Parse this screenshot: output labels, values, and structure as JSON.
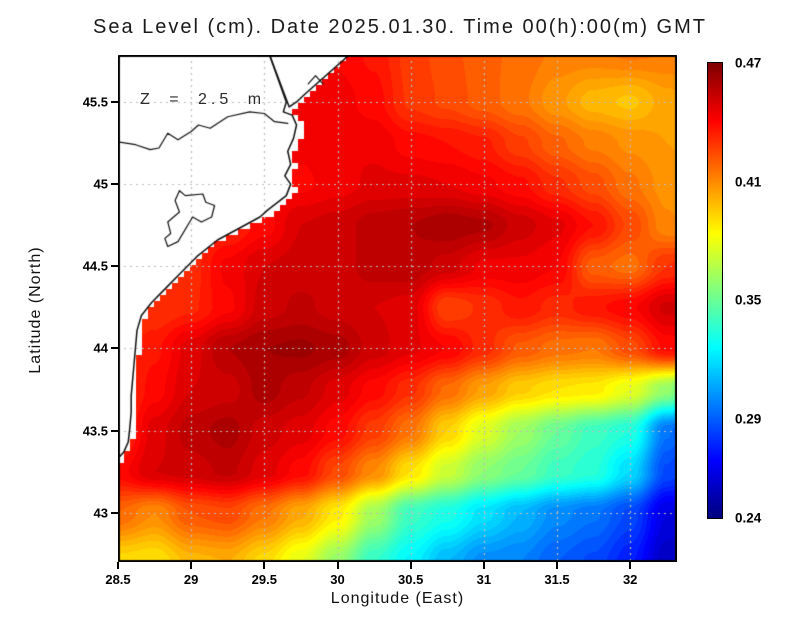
{
  "title": {
    "text": "Sea Level (cm). Date 2025.01.30. Time 00(h):00(m) GMT"
  },
  "annotation": {
    "text": "Z = 2.5 m"
  },
  "axes": {
    "xlabel": "Longitude (East)",
    "ylabel": "Latitude (North)"
  },
  "colorbar": {
    "labels": [
      "0.47",
      "0.41",
      "0.35",
      "0.29",
      "0.24"
    ],
    "values": [
      0.47,
      0.41,
      0.35,
      0.29,
      0.24
    ],
    "min": 0.24,
    "max": 0.47
  },
  "colors": {
    "land": "#ffffff",
    "coastline": "#111111",
    "gridline": "#bdbdbd",
    "border": "#000000"
  },
  "chart_data": {
    "type": "heatmap",
    "title": "Sea Level (cm). Date 2025.01.30. Time 00(h):00(m) GMT",
    "xlabel": "Longitude (East)",
    "ylabel": "Latitude (North)",
    "xlim": [
      28.5,
      32.32
    ],
    "ylim": [
      42.7,
      45.786
    ],
    "xticks": [
      28.5,
      29,
      29.5,
      30,
      30.5,
      31,
      31.5,
      32
    ],
    "xtick_labels": [
      "28.5",
      "29",
      "29.5",
      "30",
      "30.5",
      "31",
      "31.5",
      "32"
    ],
    "yticks": [
      43,
      43.5,
      44,
      44.5,
      45,
      45.5
    ],
    "ytick_labels": [
      "43",
      "43.5",
      "44",
      "44.5",
      "45",
      "45.5"
    ],
    "grid": true,
    "colormap": "jet",
    "vmin": 0.24,
    "vmax": 0.47,
    "legend_position": "right-colorbar",
    "lon": [
      28.5,
      28.75,
      29.0,
      29.25,
      29.5,
      29.75,
      30.0,
      30.25,
      30.5,
      30.75,
      31.0,
      31.25,
      31.5,
      31.75,
      32.0,
      32.25,
      32.5
    ],
    "lat": [
      45.8,
      45.5,
      45.25,
      45.0,
      44.75,
      44.5,
      44.25,
      44.0,
      43.75,
      43.5,
      43.25,
      43.0,
      42.7
    ],
    "values": [
      [
        0.44,
        0.44,
        0.44,
        0.44,
        0.44,
        0.441,
        0.441,
        0.437,
        0.428,
        0.424,
        0.419,
        0.417,
        0.413,
        0.413,
        0.415,
        0.414,
        0.412
      ],
      [
        0.44,
        0.44,
        0.44,
        0.44,
        0.441,
        0.442,
        0.444,
        0.44,
        0.429,
        0.425,
        0.42,
        0.415,
        0.407,
        0.4,
        0.397,
        0.404,
        0.41
      ],
      [
        0.44,
        0.44,
        0.44,
        0.44,
        0.441,
        0.443,
        0.446,
        0.445,
        0.44,
        0.438,
        0.435,
        0.427,
        0.419,
        0.413,
        0.409,
        0.406,
        0.405
      ],
      [
        0.44,
        0.44,
        0.44,
        0.44,
        0.441,
        0.441,
        0.444,
        0.447,
        0.447,
        0.446,
        0.443,
        0.439,
        0.431,
        0.424,
        0.415,
        0.408,
        0.404
      ],
      [
        0.43,
        0.43,
        0.43,
        0.433,
        0.44,
        0.45,
        0.452,
        0.456,
        0.458,
        0.461,
        0.459,
        0.452,
        0.447,
        0.438,
        0.425,
        0.411,
        0.405
      ],
      [
        0.43,
        0.43,
        0.432,
        0.443,
        0.45,
        0.452,
        0.452,
        0.456,
        0.457,
        0.452,
        0.445,
        0.445,
        0.442,
        0.42,
        0.416,
        0.43,
        0.438
      ],
      [
        0.43,
        0.43,
        0.433,
        0.441,
        0.452,
        0.455,
        0.452,
        0.45,
        0.448,
        0.426,
        0.431,
        0.437,
        0.432,
        0.437,
        0.441,
        0.451,
        0.454
      ],
      [
        0.43,
        0.437,
        0.448,
        0.458,
        0.462,
        0.463,
        0.46,
        0.452,
        0.447,
        0.442,
        0.432,
        0.421,
        0.416,
        0.414,
        0.424,
        0.439,
        0.441
      ],
      [
        0.428,
        0.44,
        0.45,
        0.452,
        0.46,
        0.455,
        0.448,
        0.44,
        0.431,
        0.417,
        0.405,
        0.395,
        0.39,
        0.388,
        0.378,
        0.36,
        0.318
      ],
      [
        0.428,
        0.448,
        0.456,
        0.46,
        0.452,
        0.448,
        0.44,
        0.428,
        0.415,
        0.394,
        0.376,
        0.362,
        0.35,
        0.34,
        0.334,
        0.295,
        0.276
      ],
      [
        0.44,
        0.45,
        0.452,
        0.455,
        0.448,
        0.44,
        0.425,
        0.41,
        0.39,
        0.372,
        0.358,
        0.35,
        0.34,
        0.335,
        0.318,
        0.285,
        0.27
      ],
      [
        0.418,
        0.41,
        0.422,
        0.425,
        0.415,
        0.403,
        0.388,
        0.363,
        0.34,
        0.332,
        0.32,
        0.31,
        0.3,
        0.295,
        0.285,
        0.262,
        0.255
      ],
      [
        0.392,
        0.39,
        0.4,
        0.402,
        0.392,
        0.378,
        0.36,
        0.338,
        0.325,
        0.31,
        0.3,
        0.298,
        0.29,
        0.285,
        0.275,
        0.255,
        0.248
      ]
    ],
    "land": {
      "mask_polygon": [
        [
          30.12,
          45.82
        ],
        [
          29.69,
          45.45
        ],
        [
          29.74,
          45.4
        ],
        [
          29.77,
          45.34
        ],
        [
          29.74,
          45.26
        ],
        [
          29.7,
          45.18
        ],
        [
          29.72,
          45.1
        ],
        [
          29.68,
          45.03
        ],
        [
          29.72,
          44.98
        ],
        [
          29.69,
          44.91
        ],
        [
          29.55,
          44.81
        ],
        [
          29.22,
          44.67
        ],
        [
          29.08,
          44.57
        ],
        [
          28.97,
          44.48
        ],
        [
          28.87,
          44.39
        ],
        [
          28.77,
          44.3
        ],
        [
          28.7,
          44.22
        ],
        [
          28.67,
          44.13
        ],
        [
          28.66,
          44.03
        ],
        [
          28.64,
          43.93
        ],
        [
          28.63,
          43.83
        ],
        [
          28.62,
          43.73
        ],
        [
          28.62,
          43.63
        ],
        [
          28.61,
          43.53
        ],
        [
          28.6,
          43.44
        ],
        [
          28.56,
          43.36
        ],
        [
          28.5,
          43.3
        ],
        [
          28.46,
          43.28
        ],
        [
          28.46,
          45.82
        ]
      ],
      "coastline": [
        [
          29.53,
          45.8
        ],
        [
          29.65,
          45.5
        ],
        [
          29.63,
          45.44
        ],
        [
          29.69,
          45.42
        ],
        [
          29.72,
          45.36
        ],
        [
          29.7,
          45.28
        ],
        [
          29.66,
          45.2
        ],
        [
          29.68,
          45.12
        ],
        [
          29.64,
          45.05
        ],
        [
          29.68,
          45.0
        ],
        [
          29.65,
          44.93
        ],
        [
          29.52,
          44.84
        ],
        [
          29.47,
          44.8
        ],
        [
          29.18,
          44.66
        ],
        [
          29.04,
          44.56
        ],
        [
          28.93,
          44.46
        ],
        [
          28.83,
          44.37
        ],
        [
          28.73,
          44.28
        ],
        [
          28.66,
          44.2
        ],
        [
          28.63,
          44.11
        ],
        [
          28.62,
          44.01
        ],
        [
          28.61,
          43.91
        ],
        [
          28.6,
          43.81
        ],
        [
          28.59,
          43.71
        ],
        [
          28.59,
          43.61
        ],
        [
          28.58,
          43.51
        ],
        [
          28.57,
          43.43
        ],
        [
          28.54,
          43.37
        ],
        [
          28.49,
          43.32
        ]
      ],
      "delta_front": [
        [
          29.53,
          45.8
        ],
        [
          29.67,
          45.47
        ],
        [
          29.72,
          45.5
        ],
        [
          29.78,
          45.55
        ],
        [
          30.11,
          45.81
        ]
      ],
      "islets": [
        [
          29.8,
          45.61
        ],
        [
          29.85,
          45.66
        ],
        [
          29.9,
          45.61
        ]
      ],
      "river": [
        [
          28.48,
          45.26
        ],
        [
          28.62,
          45.24
        ],
        [
          28.72,
          45.21
        ],
        [
          28.78,
          45.22
        ],
        [
          28.84,
          45.31
        ],
        [
          28.91,
          45.27
        ],
        [
          29.0,
          45.32
        ],
        [
          29.05,
          45.36
        ],
        [
          29.13,
          45.34
        ],
        [
          29.25,
          45.41
        ],
        [
          29.4,
          45.44
        ],
        [
          29.5,
          45.43
        ],
        [
          29.57,
          45.38
        ],
        [
          29.66,
          45.37
        ]
      ],
      "lagoon": [
        [
          28.92,
          44.96
        ],
        [
          28.96,
          44.93
        ],
        [
          29.08,
          44.94
        ],
        [
          29.1,
          44.89
        ],
        [
          29.16,
          44.87
        ],
        [
          29.14,
          44.8
        ],
        [
          29.07,
          44.77
        ],
        [
          29.01,
          44.8
        ],
        [
          28.91,
          44.65
        ],
        [
          28.84,
          44.62
        ],
        [
          28.82,
          44.67
        ],
        [
          28.86,
          44.7
        ],
        [
          28.84,
          44.77
        ],
        [
          28.92,
          44.83
        ],
        [
          28.89,
          44.9
        ],
        [
          28.92,
          44.96
        ]
      ]
    }
  }
}
